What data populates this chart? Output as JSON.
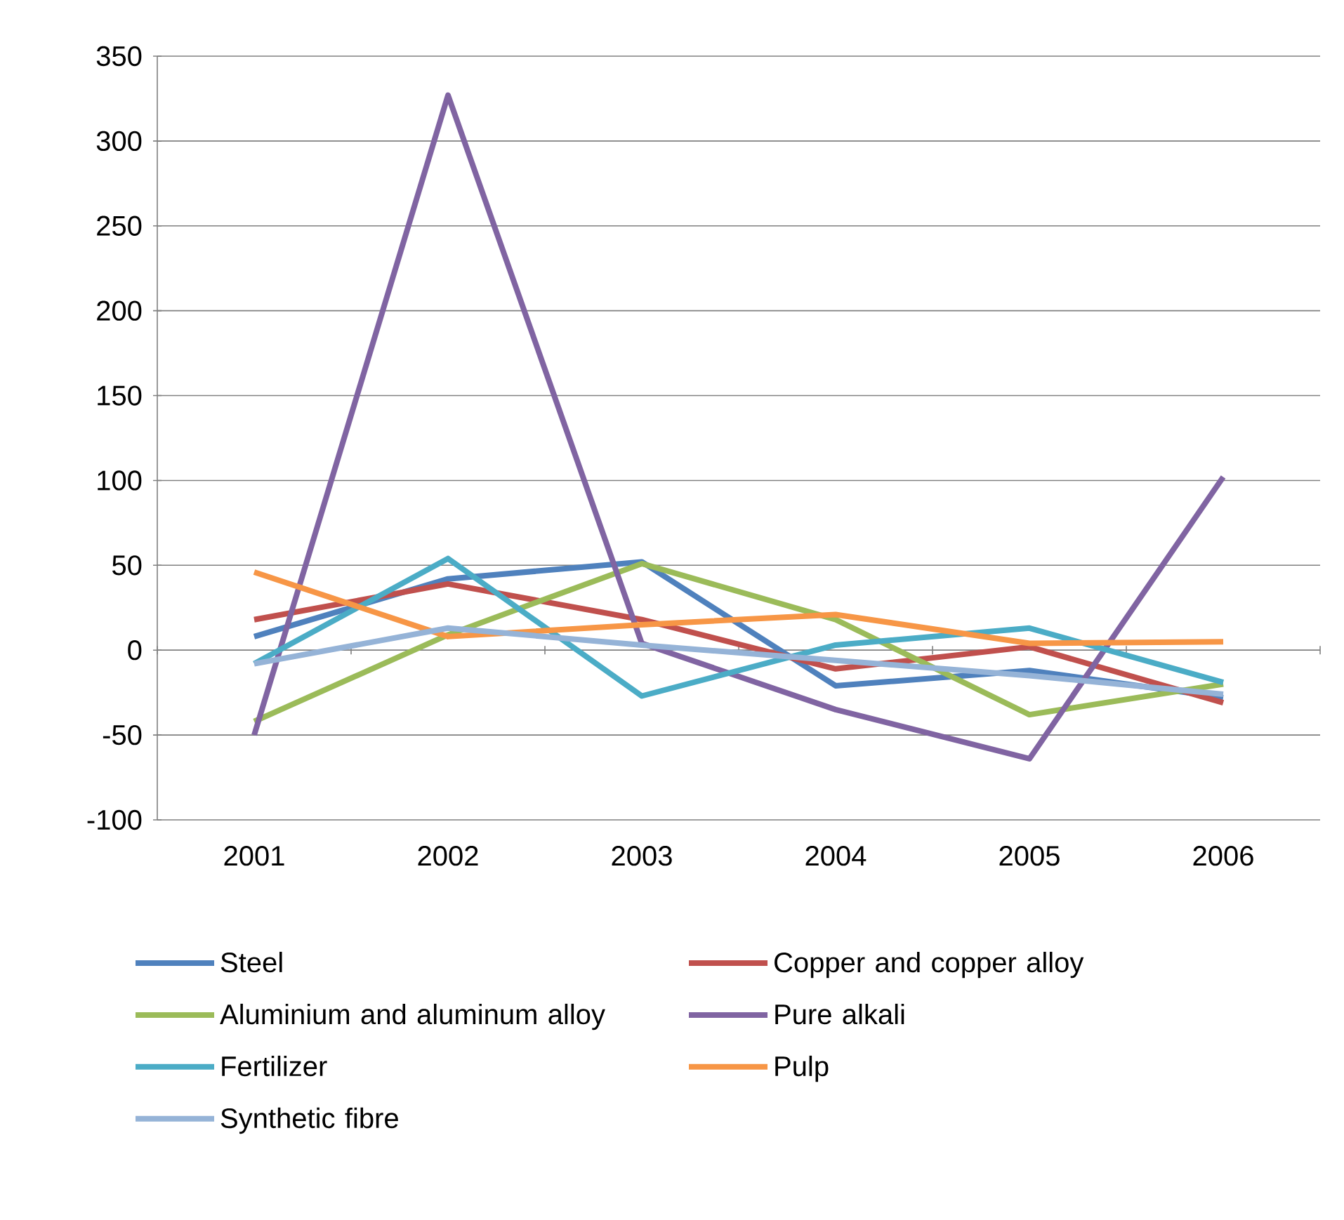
{
  "chart_data": {
    "type": "line",
    "categories": [
      "2001",
      "2002",
      "2003",
      "2004",
      "2005",
      "2006"
    ],
    "series": [
      {
        "name": "Steel",
        "color": "#4f81bd",
        "values": [
          8,
          42,
          52,
          -21,
          -12,
          -28
        ]
      },
      {
        "name": "Copper and copper alloy",
        "color": "#c0504d",
        "values": [
          18,
          39,
          18,
          -11,
          2,
          -31
        ]
      },
      {
        "name": "Aluminium and aluminum alloy",
        "color": "#9bbb59",
        "values": [
          -42,
          9,
          51,
          18,
          -38,
          -20
        ]
      },
      {
        "name": "Pure alkali",
        "color": "#8064a2",
        "values": [
          -50,
          327,
          4,
          -35,
          -64,
          102
        ]
      },
      {
        "name": "Fertilizer",
        "color": "#4bacc6",
        "values": [
          -8,
          54,
          -27,
          3,
          13,
          -19
        ]
      },
      {
        "name": "Pulp",
        "color": "#f79646",
        "values": [
          46,
          8,
          15,
          21,
          4,
          5
        ]
      },
      {
        "name": "Synthetic fibre",
        "color": "#95b3d7",
        "values": [
          -8,
          13,
          3,
          -6,
          -15,
          -26
        ]
      }
    ],
    "ylim": [
      -100,
      350
    ],
    "yticks": [
      -100,
      -50,
      0,
      50,
      100,
      150,
      200,
      250,
      300,
      350
    ],
    "grid": "y",
    "legend": "bottom",
    "marker": "none",
    "line_style": "solid"
  }
}
